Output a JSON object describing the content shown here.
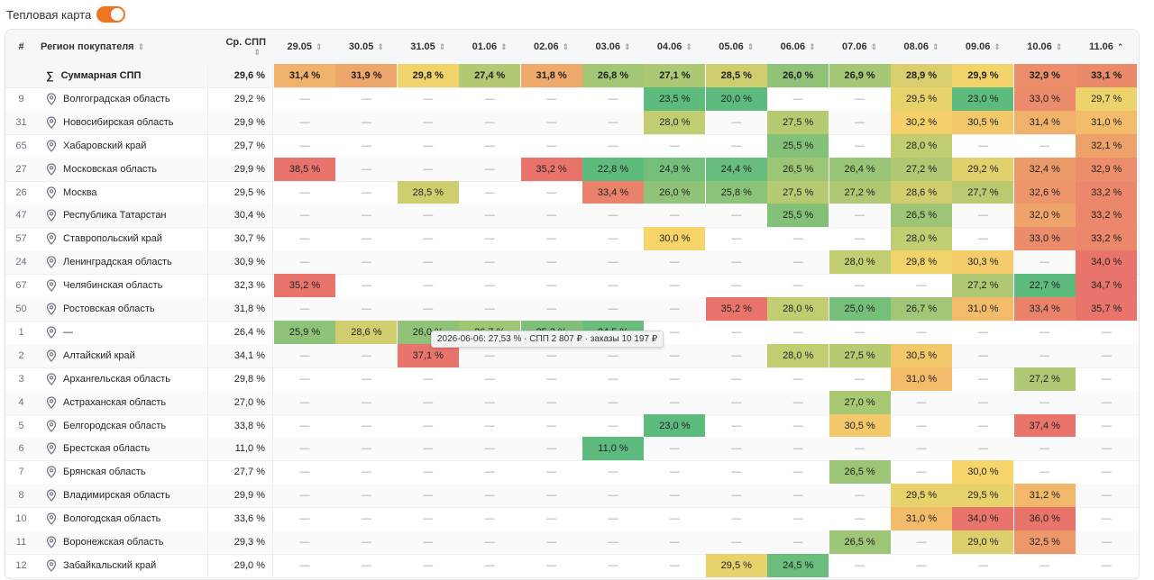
{
  "toggle": {
    "label": "Тепловая карта",
    "on": true
  },
  "header": {
    "num": "#",
    "region": "Регион покупателя",
    "avg": "Ср. СПП",
    "dates": [
      "29.05",
      "30.05",
      "31.05",
      "01.06",
      "02.06",
      "03.06",
      "04.06",
      "05.06",
      "06.06",
      "07.06",
      "08.06",
      "09.06",
      "10.06",
      "11.06"
    ]
  },
  "summary": {
    "label": "Суммарная СПП",
    "avg": "29,6 %",
    "values": [
      "31,4 %",
      "31,9 %",
      "29,8 %",
      "27,4 %",
      "31,8 %",
      "26,8 %",
      "27,1 %",
      "28,5 %",
      "26,0 %",
      "26,9 %",
      "28,9 %",
      "29,9 %",
      "32,9 %",
      "33,1 %"
    ]
  },
  "rows": [
    {
      "num": "9",
      "region": "Волгоградская область",
      "avg": "29,2 %",
      "values": [
        "—",
        "—",
        "—",
        "—",
        "—",
        "—",
        "23,5 %",
        "20,0 %",
        "—",
        "—",
        "29,5 %",
        "23,0 %",
        "33,0 %",
        "29,7 %"
      ]
    },
    {
      "num": "31",
      "region": "Новосибирская область",
      "avg": "29,9 %",
      "values": [
        "—",
        "—",
        "—",
        "—",
        "—",
        "—",
        "28,0 %",
        "—",
        "27,5 %",
        "—",
        "30,2 %",
        "30,5 %",
        "31,4 %",
        "31,0 %"
      ]
    },
    {
      "num": "65",
      "region": "Хабаровский край",
      "avg": "29,7 %",
      "values": [
        "—",
        "—",
        "—",
        "—",
        "—",
        "—",
        "—",
        "—",
        "25,5 %",
        "—",
        "28,0 %",
        "—",
        "—",
        "32,1 %"
      ]
    },
    {
      "num": "27",
      "region": "Московская область",
      "avg": "29,9 %",
      "values": [
        "38,5 %",
        "—",
        "—",
        "—",
        "35,2 %",
        "22,8 %",
        "24,9 %",
        "24,4 %",
        "26,5 %",
        "26,4 %",
        "27,2 %",
        "29,2 %",
        "32,4 %",
        "32,9 %"
      ]
    },
    {
      "num": "26",
      "region": "Москва",
      "avg": "29,5 %",
      "values": [
        "—",
        "—",
        "28,5 %",
        "—",
        "—",
        "33,4 %",
        "26,0 %",
        "25,8 %",
        "27,5 %",
        "27,2 %",
        "28,6 %",
        "27,7 %",
        "32,6 %",
        "33,2 %"
      ]
    },
    {
      "num": "47",
      "region": "Республика Татарстан",
      "avg": "30,4 %",
      "values": [
        "—",
        "—",
        "—",
        "—",
        "—",
        "—",
        "—",
        "—",
        "25,5 %",
        "—",
        "26,5 %",
        "—",
        "32,0 %",
        "33,2 %"
      ]
    },
    {
      "num": "57",
      "region": "Ставропольский край",
      "avg": "30,7 %",
      "values": [
        "—",
        "—",
        "—",
        "—",
        "—",
        "—",
        "30,0 %",
        "—",
        "—",
        "—",
        "28,0 %",
        "—",
        "33,0 %",
        "33,2 %"
      ]
    },
    {
      "num": "24",
      "region": "Ленинградская область",
      "avg": "30,9 %",
      "values": [
        "—",
        "—",
        "—",
        "—",
        "—",
        "—",
        "—",
        "—",
        "—",
        "28,0 %",
        "29,8 %",
        "30,3 %",
        "—",
        "34,0 %"
      ]
    },
    {
      "num": "67",
      "region": "Челябинская область",
      "avg": "32,3 %",
      "values": [
        "35,2 %",
        "—",
        "—",
        "—",
        "—",
        "—",
        "—",
        "—",
        "—",
        "—",
        "—",
        "27,2 %",
        "22,7 %",
        "34,7 %"
      ]
    },
    {
      "num": "50",
      "region": "Ростовская область",
      "avg": "31,8 %",
      "values": [
        "—",
        "—",
        "—",
        "—",
        "—",
        "—",
        "—",
        "35,2 %",
        "28,0 %",
        "25,0 %",
        "26,7 %",
        "31,0 %",
        "33,4 %",
        "35,7 %"
      ]
    },
    {
      "num": "1",
      "region": "—",
      "avg": "26,4 %",
      "values": [
        "25,9 %",
        "28,6 %",
        "26,0 %",
        "26,7 %",
        "25,3 %",
        "24,5 %",
        "—",
        "—",
        "—",
        "—",
        "—",
        "—",
        "—",
        "—"
      ]
    },
    {
      "num": "2",
      "region": "Алтайский край",
      "avg": "34,1 %",
      "values": [
        "—",
        "—",
        "37,1 %",
        "—",
        "—",
        "—",
        "—",
        "—",
        "28,0 %",
        "27,5 %",
        "30,5 %",
        "—",
        "—",
        "—"
      ]
    },
    {
      "num": "3",
      "region": "Архангельская область",
      "avg": "29,8 %",
      "values": [
        "—",
        "—",
        "—",
        "—",
        "—",
        "—",
        "—",
        "—",
        "—",
        "—",
        "31,0 %",
        "—",
        "27,2 %",
        "—"
      ]
    },
    {
      "num": "4",
      "region": "Астраханская область",
      "avg": "27,0 %",
      "values": [
        "—",
        "—",
        "—",
        "—",
        "—",
        "—",
        "—",
        "—",
        "—",
        "27,0 %",
        "—",
        "—",
        "—",
        "—"
      ]
    },
    {
      "num": "5",
      "region": "Белгородская область",
      "avg": "33,8 %",
      "values": [
        "—",
        "—",
        "—",
        "—",
        "—",
        "—",
        "23,0 %",
        "—",
        "—",
        "30,5 %",
        "—",
        "—",
        "37,4 %",
        "—"
      ]
    },
    {
      "num": "6",
      "region": "Брестская область",
      "avg": "11,0 %",
      "values": [
        "—",
        "—",
        "—",
        "—",
        "—",
        "11,0 %",
        "—",
        "—",
        "—",
        "—",
        "—",
        "—",
        "—",
        "—"
      ]
    },
    {
      "num": "7",
      "region": "Брянская область",
      "avg": "27,7 %",
      "values": [
        "—",
        "—",
        "—",
        "—",
        "—",
        "—",
        "—",
        "—",
        "—",
        "26,5 %",
        "—",
        "30,0 %",
        "—",
        "—"
      ]
    },
    {
      "num": "8",
      "region": "Владимирская область",
      "avg": "29,9 %",
      "values": [
        "—",
        "—",
        "—",
        "—",
        "—",
        "—",
        "—",
        "—",
        "—",
        "—",
        "29,5 %",
        "29,5 %",
        "31,2 %",
        "—"
      ]
    },
    {
      "num": "10",
      "region": "Вологодская область",
      "avg": "33,6 %",
      "values": [
        "—",
        "—",
        "—",
        "—",
        "—",
        "—",
        "—",
        "—",
        "—",
        "—",
        "31,0 %",
        "34,0 %",
        "36,0 %",
        "—"
      ]
    },
    {
      "num": "11",
      "region": "Воронежская область",
      "avg": "29,3 %",
      "values": [
        "—",
        "—",
        "—",
        "—",
        "—",
        "—",
        "—",
        "—",
        "—",
        "26,5 %",
        "—",
        "29,0 %",
        "32,5 %",
        "—"
      ]
    },
    {
      "num": "12",
      "region": "Забайкальский край",
      "avg": "29,0 %",
      "values": [
        "—",
        "—",
        "—",
        "—",
        "—",
        "—",
        "—",
        "29,5 %",
        "24,5 %",
        "—",
        "—",
        "—",
        "—",
        "—"
      ]
    }
  ],
  "tooltip": "2026-06-06: 27,53 % · СПП 2 807 ₽ · заказы 10 197 ₽",
  "colors": {
    "accent": "#f07426",
    "heat_green": "#5dbb7e",
    "heat_yellow": "#f5d46a",
    "heat_red": "#e8746b"
  }
}
